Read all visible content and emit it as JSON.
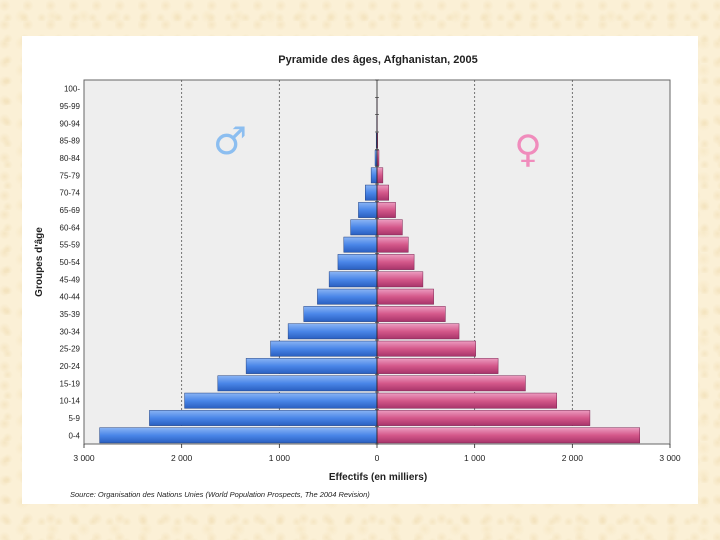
{
  "chart_data": {
    "type": "bar",
    "orientation": "horizontal",
    "title": "Pyramide des âges, Afghanistan, 2005",
    "xlabel": "Effectifs (en milliers)",
    "ylabel": "Groupes d'âge",
    "source": "Source: Organisation des Nations Unies (World Population Prospects, The 2004 Revision)",
    "categories": [
      "0-4",
      "5-9",
      "10-14",
      "15-19",
      "20-24",
      "25-29",
      "30-34",
      "35-39",
      "40-44",
      "45-49",
      "50-54",
      "55-59",
      "60-64",
      "65-69",
      "70-74",
      "75-79",
      "80-84",
      "85-89",
      "90-94",
      "95-99",
      "100-"
    ],
    "x_ticks": [
      "3 000",
      "2 000",
      "1 000",
      "0",
      "1 000",
      "2 000",
      "3 000"
    ],
    "xlim": [
      -3000,
      3000
    ],
    "series": [
      {
        "name": "♂",
        "color": "#4a86e8",
        "values": [
          2840,
          2330,
          1970,
          1630,
          1340,
          1090,
          910,
          750,
          610,
          490,
          400,
          340,
          270,
          190,
          120,
          60,
          20,
          8,
          3,
          1,
          0
        ]
      },
      {
        "name": "♀",
        "color": "#d4588a",
        "values": [
          2690,
          2180,
          1840,
          1520,
          1240,
          1010,
          840,
          700,
          580,
          470,
          380,
          320,
          260,
          190,
          120,
          60,
          20,
          7,
          3,
          1,
          0
        ]
      }
    ],
    "male_symbol": "♂",
    "female_symbol": "♀",
    "male_symbol_color": "#8cbef0",
    "female_symbol_color": "#f08cbc",
    "grid": "vertical dotted at ±1000 and ±2000",
    "plot_background": "#eeeeee",
    "legend": "none (sex symbols shown in plot)"
  }
}
